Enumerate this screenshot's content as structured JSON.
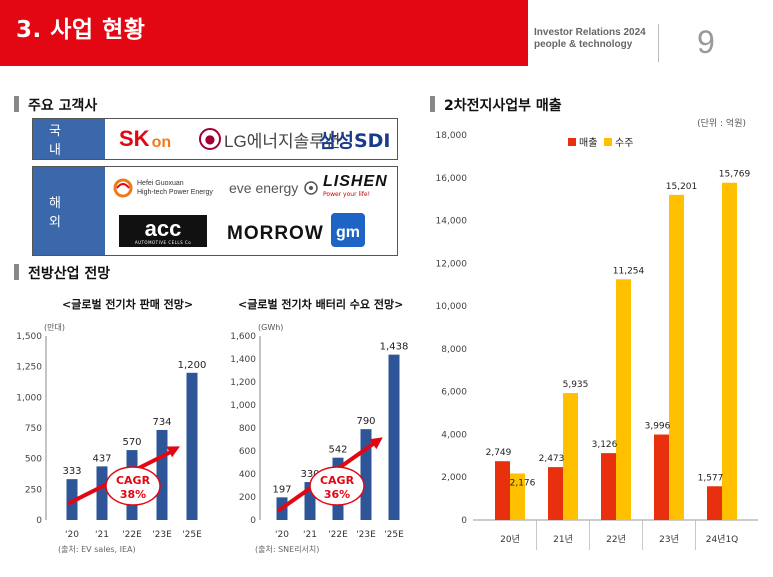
{
  "header": {
    "title": "3. 사업 현황",
    "ir_line1": "Investor Relations 2024",
    "ir_line2": "people & technology",
    "page_number": "9"
  },
  "customers": {
    "title": "주요 고객사",
    "domestic_label": "국 내",
    "overseas_label": "해 외",
    "domestic": {
      "skon": {
        "main": "SK",
        "suffix": "on"
      },
      "lg": {
        "mark": "LG",
        "text": "에너지솔루션"
      },
      "samsung": "삼성SDI"
    },
    "overseas": {
      "hefei_line1": "Hefei Guoxuan",
      "hefei_line2": "High-tech Power Energy",
      "eve": "eve energy",
      "lishen": "LISHEN",
      "lishen_sub": "Power your life!",
      "acc": "acc",
      "acc_sub": "AUTOMOTIVE CELLS Co",
      "morrow": "MORROW",
      "gm": "gm"
    }
  },
  "outlook_title": "전방산업 전망",
  "ev_sales": {
    "title": "<글로벌 전기차 판매 전망>",
    "source": "(출처: EV sales, IEA)",
    "cagr_label": "CAGR",
    "cagr_value": "38%"
  },
  "battery_demand": {
    "title": "<글로벌 전기차 배터리 수요  전망>",
    "source": "(출처: SNE리서치)",
    "cagr_label": "CAGR",
    "cagr_value": "36%"
  },
  "revenue": {
    "title": "2차전지사업부 매출"
  },
  "colors": {
    "brand_red": "#e30613",
    "bar_blue": "#2e5597",
    "sales_red": "#e8300e",
    "orders_yellow": "#ffc000",
    "label_blue": "#3a68ab"
  },
  "chart_data": [
    {
      "type": "bar",
      "id": "ev_sales",
      "categories": [
        "'20",
        "'21",
        "'22E",
        "'23E",
        "'25E"
      ],
      "values": [
        333,
        437,
        570,
        734,
        1200
      ],
      "value_labels": [
        "333",
        "437",
        "570",
        "734",
        "1,200"
      ],
      "unit": "(만대)",
      "ylim": [
        0,
        1500
      ],
      "yticks": [
        "0",
        "250",
        "500",
        "750",
        "1,000",
        "1,250",
        "1,500"
      ],
      "ytick_values": [
        0,
        250,
        500,
        750,
        1000,
        1250,
        1500
      ]
    },
    {
      "type": "bar",
      "id": "battery_demand",
      "categories": [
        "'20",
        "'21",
        "'22E",
        "'23E",
        "'25E"
      ],
      "values": [
        197,
        330,
        542,
        790,
        1438
      ],
      "value_labels": [
        "197",
        "330",
        "542",
        "790",
        "1,438"
      ],
      "unit": "(GWh)",
      "ylim": [
        0,
        1600
      ],
      "yticks": [
        "0",
        "200",
        "400",
        "600",
        "800",
        "1,000",
        "1,200",
        "1,400",
        "1,600"
      ],
      "ytick_values": [
        0,
        200,
        400,
        600,
        800,
        1000,
        1200,
        1400,
        1600
      ]
    },
    {
      "type": "bar",
      "id": "revenue",
      "unit": "(단위 : 억원)",
      "categories": [
        "20년",
        "21년",
        "22년",
        "23년",
        "24년1Q"
      ],
      "series": [
        {
          "name": "매출",
          "values": [
            2749,
            2473,
            3126,
            3996,
            1577
          ],
          "labels": [
            "2,749",
            "2,473",
            "3,126",
            "3,996",
            "1,577"
          ]
        },
        {
          "name": "수주",
          "values": [
            2176,
            5935,
            11254,
            15201,
            15769
          ],
          "labels": [
            "2,176",
            "5,935",
            "11,254",
            "15,201",
            "15,769"
          ]
        }
      ],
      "ylim": [
        0,
        18000
      ],
      "yticks": [
        "0",
        "2,000",
        "4,000",
        "6,000",
        "8,000",
        "10,000",
        "12,000",
        "14,000",
        "16,000",
        "18,000"
      ],
      "ytick_values": [
        0,
        2000,
        4000,
        6000,
        8000,
        10000,
        12000,
        14000,
        16000,
        18000
      ],
      "legend": "top-left"
    }
  ]
}
